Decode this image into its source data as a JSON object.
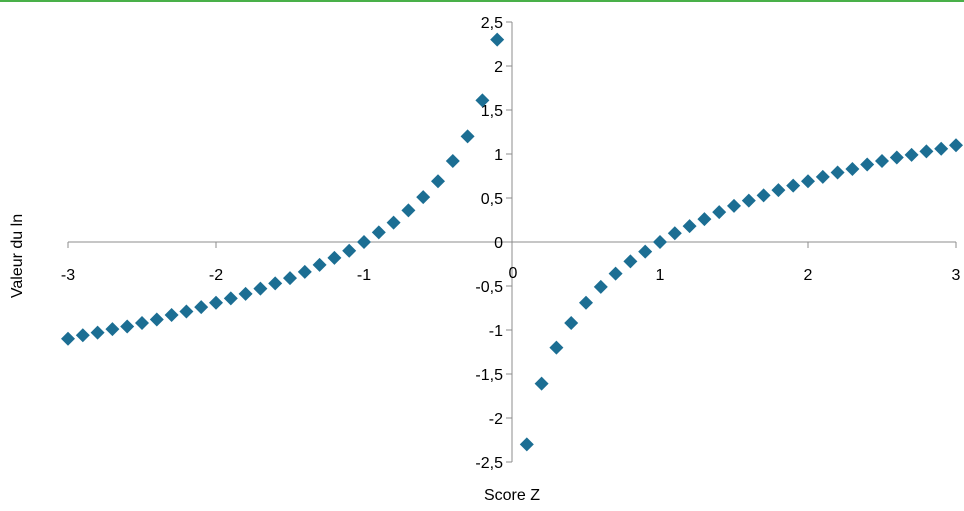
{
  "chart_data": {
    "type": "scatter",
    "xlabel": "Score Z",
    "ylabel": "Valeur du ln",
    "xlim": [
      -3,
      3
    ],
    "ylim": [
      -2.5,
      2.5
    ],
    "x_ticks": [
      "-3",
      "-2",
      "-1",
      "0",
      "1",
      "2",
      "3"
    ],
    "y_ticks": [
      "2,5",
      "2",
      "1,5",
      "1",
      "0,5",
      "0",
      "-0,5",
      "-1",
      "-1,5",
      "-2",
      "-2,5"
    ],
    "marker": "diamond",
    "colors": {
      "marker": "#1c6e93",
      "top_border": "#49b049"
    },
    "series": [
      {
        "x": [
          -3.0,
          -2.9,
          -2.8,
          -2.7,
          -2.6,
          -2.5,
          -2.4,
          -2.3,
          -2.2,
          -2.1,
          -2.0,
          -1.9,
          -1.8,
          -1.7,
          -1.6,
          -1.5,
          -1.4,
          -1.3,
          -1.2,
          -1.1,
          -1.0,
          -0.9,
          -0.8,
          -0.7,
          -0.6,
          -0.5,
          -0.4,
          -0.3,
          -0.2,
          -0.1,
          0.1,
          0.2,
          0.3,
          0.4,
          0.5,
          0.6,
          0.7,
          0.8,
          0.9,
          1.0,
          1.1,
          1.2,
          1.3,
          1.4,
          1.5,
          1.6,
          1.7,
          1.8,
          1.9,
          2.0,
          2.1,
          2.2,
          2.3,
          2.4,
          2.5,
          2.6,
          2.7,
          2.8,
          2.9,
          3.0
        ],
        "y": [
          -1.1,
          -1.06,
          -1.03,
          -0.99,
          -0.96,
          -0.92,
          -0.88,
          -0.83,
          -0.79,
          -0.74,
          -0.69,
          -0.64,
          -0.59,
          -0.53,
          -0.47,
          -0.41,
          -0.34,
          -0.26,
          -0.18,
          -0.1,
          0.0,
          0.11,
          0.22,
          0.36,
          0.51,
          0.69,
          0.92,
          1.2,
          1.61,
          2.3,
          -2.3,
          -1.61,
          -1.2,
          -0.92,
          -0.69,
          -0.51,
          -0.36,
          -0.22,
          -0.11,
          0.0,
          0.1,
          0.18,
          0.26,
          0.34,
          0.41,
          0.47,
          0.53,
          0.59,
          0.64,
          0.69,
          0.74,
          0.79,
          0.83,
          0.88,
          0.92,
          0.96,
          0.99,
          1.03,
          1.06,
          1.1
        ]
      }
    ]
  }
}
